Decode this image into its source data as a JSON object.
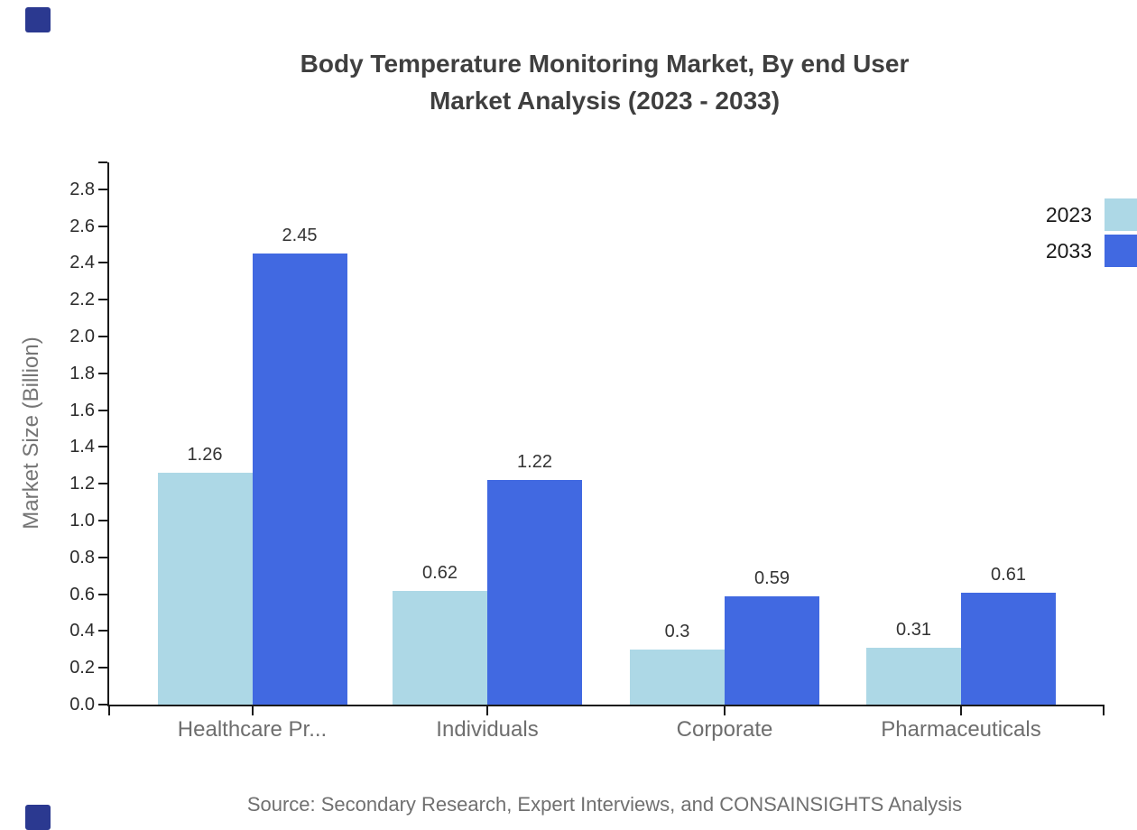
{
  "title": {
    "line1": "Body Temperature Monitoring Market, By end User",
    "line2": "Market Analysis (2023 - 2033)"
  },
  "source": "Source: Secondary Research, Expert Interviews, and CONSAINSIGHTS Analysis",
  "legend": [
    {
      "label": "2023",
      "color": "#ADD8E6"
    },
    {
      "label": "2033",
      "color": "#4169E1"
    }
  ],
  "colors": {
    "series_2023": "#ADD8E6",
    "series_2033": "#4169E1",
    "axis": "#1a1a1a",
    "brand_square": "#2B3990"
  },
  "chart_data": {
    "type": "bar",
    "title": "Body Temperature Monitoring Market, By end User Market Analysis (2023 - 2033)",
    "categories": [
      "Healthcare Pr...",
      "Individuals",
      "Corporate",
      "Pharmaceuticals"
    ],
    "series": [
      {
        "name": "2023",
        "color": "#ADD8E6",
        "values": [
          1.26,
          0.62,
          0.3,
          0.31
        ]
      },
      {
        "name": "2033",
        "color": "#4169E1",
        "values": [
          2.45,
          1.22,
          0.59,
          0.61
        ]
      }
    ],
    "xlabel": "",
    "ylabel": "Market Size (Billion)",
    "ylim": [
      0,
      2.95
    ],
    "yticks": [
      0.0,
      0.2,
      0.4,
      0.6,
      0.8,
      1.0,
      1.2,
      1.4,
      1.6,
      1.8,
      2.0,
      2.2,
      2.4,
      2.6,
      2.8
    ],
    "grid": false,
    "legend_position": "top-right",
    "value_labels": true
  }
}
